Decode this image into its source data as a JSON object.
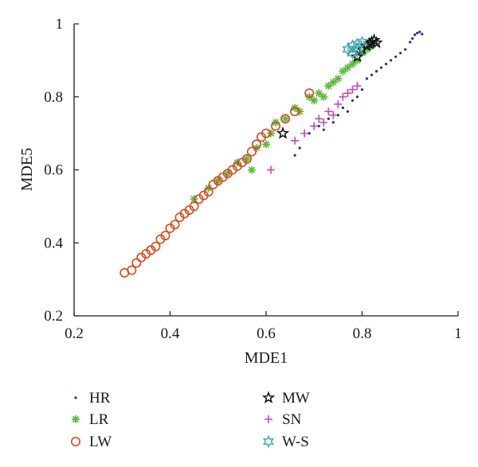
{
  "chart_data": {
    "type": "scatter",
    "xlabel": "MDE1",
    "ylabel": "MDE5",
    "xlim": [
      0.2,
      1
    ],
    "ylim": [
      0.2,
      1
    ],
    "xticks": [
      0.2,
      0.4,
      0.6,
      0.8,
      1
    ],
    "yticks": [
      0.2,
      0.4,
      0.6,
      0.8,
      1
    ],
    "xtick_labels": [
      "0.2",
      "0.4",
      "0.6",
      "0.8",
      "1"
    ],
    "ytick_labels": [
      "0.2",
      "0.4",
      "0.6",
      "0.8",
      "1"
    ],
    "grid": false,
    "legend_position": "bottom",
    "series": [
      {
        "name": "HR",
        "marker": "dot",
        "color": "#2e2a8c",
        "points": [
          [
            0.66,
            0.64
          ],
          [
            0.67,
            0.66
          ],
          [
            0.69,
            0.7
          ],
          [
            0.71,
            0.72
          ],
          [
            0.72,
            0.71
          ],
          [
            0.73,
            0.74
          ],
          [
            0.74,
            0.73
          ],
          [
            0.75,
            0.75
          ],
          [
            0.76,
            0.77
          ],
          [
            0.77,
            0.76
          ],
          [
            0.78,
            0.79
          ],
          [
            0.79,
            0.8
          ],
          [
            0.8,
            0.82
          ],
          [
            0.81,
            0.85
          ],
          [
            0.82,
            0.86
          ],
          [
            0.83,
            0.87
          ],
          [
            0.84,
            0.88
          ],
          [
            0.85,
            0.89
          ],
          [
            0.86,
            0.9
          ],
          [
            0.87,
            0.91
          ],
          [
            0.88,
            0.92
          ],
          [
            0.89,
            0.93
          ],
          [
            0.9,
            0.95
          ],
          [
            0.905,
            0.96
          ],
          [
            0.91,
            0.97
          ],
          [
            0.915,
            0.975
          ],
          [
            0.92,
            0.978
          ],
          [
            0.925,
            0.972
          ]
        ]
      },
      {
        "name": "LR",
        "marker": "asterisk",
        "color": "#5dba3c",
        "points": [
          [
            0.45,
            0.52
          ],
          [
            0.48,
            0.55
          ],
          [
            0.5,
            0.57
          ],
          [
            0.52,
            0.59
          ],
          [
            0.54,
            0.62
          ],
          [
            0.56,
            0.63
          ],
          [
            0.57,
            0.6
          ],
          [
            0.58,
            0.66
          ],
          [
            0.6,
            0.67
          ],
          [
            0.61,
            0.7
          ],
          [
            0.62,
            0.73
          ],
          [
            0.64,
            0.74
          ],
          [
            0.66,
            0.77
          ],
          [
            0.67,
            0.76
          ],
          [
            0.69,
            0.8
          ],
          [
            0.7,
            0.79
          ],
          [
            0.71,
            0.81
          ],
          [
            0.72,
            0.8
          ],
          [
            0.73,
            0.83
          ],
          [
            0.74,
            0.84
          ],
          [
            0.75,
            0.85
          ],
          [
            0.76,
            0.87
          ],
          [
            0.77,
            0.88
          ],
          [
            0.78,
            0.89
          ],
          [
            0.79,
            0.9
          ],
          [
            0.8,
            0.92
          ],
          [
            0.81,
            0.93
          ],
          [
            0.82,
            0.94
          ]
        ]
      },
      {
        "name": "LW",
        "marker": "circle",
        "color": "#d64a1e",
        "points": [
          [
            0.305,
            0.318
          ],
          [
            0.32,
            0.325
          ],
          [
            0.33,
            0.345
          ],
          [
            0.34,
            0.36
          ],
          [
            0.35,
            0.37
          ],
          [
            0.36,
            0.38
          ],
          [
            0.37,
            0.39
          ],
          [
            0.38,
            0.41
          ],
          [
            0.39,
            0.42
          ],
          [
            0.4,
            0.44
          ],
          [
            0.41,
            0.45
          ],
          [
            0.42,
            0.47
          ],
          [
            0.43,
            0.48
          ],
          [
            0.44,
            0.49
          ],
          [
            0.45,
            0.5
          ],
          [
            0.46,
            0.52
          ],
          [
            0.47,
            0.53
          ],
          [
            0.48,
            0.54
          ],
          [
            0.49,
            0.56
          ],
          [
            0.5,
            0.57
          ],
          [
            0.51,
            0.58
          ],
          [
            0.52,
            0.59
          ],
          [
            0.53,
            0.6
          ],
          [
            0.54,
            0.61
          ],
          [
            0.55,
            0.62
          ],
          [
            0.56,
            0.63
          ],
          [
            0.57,
            0.65
          ],
          [
            0.58,
            0.67
          ],
          [
            0.59,
            0.69
          ],
          [
            0.6,
            0.7
          ],
          [
            0.62,
            0.72
          ],
          [
            0.64,
            0.74
          ],
          [
            0.66,
            0.76
          ],
          [
            0.69,
            0.81
          ]
        ]
      },
      {
        "name": "MW",
        "marker": "star",
        "color": "#111111",
        "points": [
          [
            0.635,
            0.7
          ],
          [
            0.79,
            0.91
          ],
          [
            0.8,
            0.93
          ],
          [
            0.81,
            0.94
          ],
          [
            0.815,
            0.945
          ],
          [
            0.82,
            0.95
          ],
          [
            0.825,
            0.955
          ],
          [
            0.83,
            0.948
          ]
        ]
      },
      {
        "name": "SN",
        "marker": "plus",
        "color": "#c04ab8",
        "points": [
          [
            0.61,
            0.6
          ],
          [
            0.66,
            0.68
          ],
          [
            0.68,
            0.7
          ],
          [
            0.7,
            0.72
          ],
          [
            0.71,
            0.74
          ],
          [
            0.72,
            0.73
          ],
          [
            0.73,
            0.76
          ],
          [
            0.74,
            0.75
          ],
          [
            0.75,
            0.78
          ],
          [
            0.76,
            0.8
          ],
          [
            0.77,
            0.81
          ],
          [
            0.78,
            0.82
          ],
          [
            0.79,
            0.83
          ]
        ]
      },
      {
        "name": "W-S",
        "marker": "hexstar",
        "color": "#44a9b3",
        "points": [
          [
            0.77,
            0.93
          ],
          [
            0.78,
            0.94
          ],
          [
            0.79,
            0.945
          ],
          [
            0.8,
            0.95
          ],
          [
            0.78,
            0.92
          ],
          [
            0.79,
            0.93
          ]
        ]
      }
    ]
  }
}
